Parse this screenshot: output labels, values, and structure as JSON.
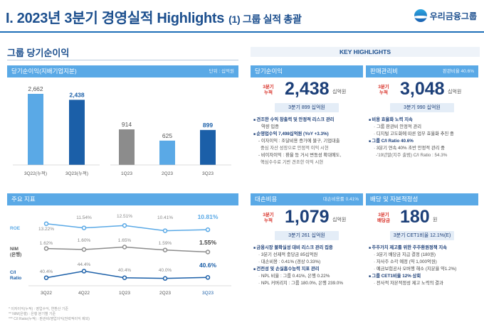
{
  "header": {
    "title": "I. 2023년 3분기 경영실적 Highlights",
    "subtitle": "(1) 그룹 실적 총괄",
    "logo_text": "우리금융그룹"
  },
  "left": {
    "section_title": "그룹 당기순이익",
    "bar_panel": {
      "title": "당기순이익(지배기업지분)",
      "unit": "단위 : 십억원"
    },
    "kpi_panel": {
      "title": "주요 지표"
    }
  },
  "chart_data": [
    {
      "type": "bar",
      "title": "당기순이익(지배기업지분)",
      "unit": "단위 : 십억원",
      "groups": [
        {
          "categories": [
            "3Q22(누적)",
            "3Q23(누적)"
          ],
          "values": [
            2662,
            2438
          ],
          "colors": [
            "#5aa9e6",
            "#1b5fa8"
          ]
        },
        {
          "categories": [
            "1Q23",
            "2Q23",
            "3Q23"
          ],
          "values": [
            914,
            625,
            899
          ],
          "colors": [
            "#8c8c8c",
            "#5aa9e6",
            "#1b5fa8"
          ]
        }
      ],
      "labels": [
        "2,662",
        "2,438",
        "914",
        "625",
        "899"
      ]
    },
    {
      "type": "line",
      "title": "주요 지표",
      "categories": [
        "3Q22",
        "4Q22",
        "1Q23",
        "2Q23",
        "3Q23"
      ],
      "series": [
        {
          "name": "ROE",
          "values": [
            13.22,
            11.54,
            12.51,
            10.41,
            10.81
          ],
          "labels": [
            "13.22%",
            "11.54%",
            "12.51%",
            "10.41%",
            "10.81%"
          ],
          "color": "#5aa9e6"
        },
        {
          "name": "NIM (은행)",
          "values": [
            1.62,
            1.6,
            1.65,
            1.59,
            1.55
          ],
          "labels": [
            "1.62%",
            "1.60%",
            "1.65%",
            "1.59%",
            "1.55%"
          ],
          "color": "#8c8c8c"
        },
        {
          "name": "C/I Ratio",
          "values": [
            40.4,
            44.4,
            40.4,
            40.0,
            40.6
          ],
          "labels": [
            "40.4%",
            "44.4%",
            "40.4%",
            "40.0%",
            "40.6%"
          ],
          "color": "#1b5fa8"
        }
      ]
    }
  ],
  "footnotes": [
    "* 이자이익(누적) : 영업수익, 연환산 기준",
    "** NIM(은행) : 은행 분기별 기준",
    "*** C/I Ratio(누적) : 판관비/영업이익(전략적이익 제외)"
  ],
  "key_highlights": {
    "title": "KEY HIGHLIGHTS",
    "cards": [
      {
        "header": "당기순이익",
        "extra": "",
        "label": "3분기 누적",
        "value": "2,438",
        "unit": "십억원",
        "sub": "3분기 899 십억원",
        "lines": [
          {
            "cls": "b",
            "text": "견조한 수익 창출력 및 안정적 리스크 관리"
          },
          {
            "cls": "t",
            "text": "역량 입증"
          },
          {
            "cls": "b",
            "text": "순영업수익 7,498십억원 (YoY +3.3%)"
          },
          {
            "cls": "s",
            "text": "이자이익 : 조달비용 증가에 불구, 기업대출"
          },
          {
            "cls": "ss",
            "text": "중심 자산 성장으로 안정적 이익 시현"
          },
          {
            "cls": "s",
            "text": "비이자이익 : 환율 등 거시 변동성 확대에도,"
          },
          {
            "cls": "ss",
            "text": "핵심수수료 기반 견조한 이익 시현"
          }
        ]
      },
      {
        "header": "판매관리비",
        "extra": "판관비율 40.6%",
        "label": "3분기 누적",
        "value": "3,048",
        "unit": "십억원",
        "sub": "3분기 990 십억원",
        "lines": [
          {
            "cls": "b",
            "text": "비용 효율화 노력 지속"
          },
          {
            "cls": "tb",
            "text": "그룹 판관비 안정적 관리"
          },
          {
            "cls": "tb",
            "text": "디지털 고도화에 따른 업무 효율화 추진 중"
          },
          {
            "cls": "b",
            "text": "그룹 C/I Ratio 40.6%"
          },
          {
            "cls": "tb",
            "text": "3분기 연속 40% 초반 안정적 관리 중"
          },
          {
            "cls": "ss",
            "text": "-'19년말(지주 출범) C/I Ratio : 54.3%"
          }
        ]
      },
      {
        "header": "대손비용",
        "extra": "대손비용률 0.41%",
        "label": "3분기 누적",
        "value": "1,079",
        "unit": "십억원",
        "sub": "3분기 261 십억원",
        "lines": [
          {
            "cls": "b",
            "text": "금융시장 불확실성 대비 리스크 관리 집중"
          },
          {
            "cls": "tb",
            "text": "3분기 선제적 충당금 85십억원"
          },
          {
            "cls": "tb",
            "text": "대손비용 : 0.41% (경상 0.33%)"
          },
          {
            "cls": "b",
            "text": "건전성 및 손실흡수능력 지표 관리"
          },
          {
            "cls": "tb",
            "text": "NPL 비율 : 그룹 0.41%, 은행 0.22%"
          },
          {
            "cls": "tb",
            "text": "NPL 커버리지 : 그룹 180.0%, 은행 239.0%"
          }
        ]
      },
      {
        "header": "배당 및 자본적정성",
        "extra": "",
        "label": "3분기 배당금",
        "value": "180",
        "unit": "원",
        "sub": "3분기 CET1비율 12.1%(E)",
        "lines": [
          {
            "cls": "b",
            "text": "주주가치 제고를 위한 주주환원정책 지속"
          },
          {
            "cls": "tb",
            "text": "3분기 배당금 지급 결정 (180원)"
          },
          {
            "cls": "tb",
            "text": "자사주 소각 예정 (약 1,000억원)"
          },
          {
            "cls": "tb",
            "text": "예금보험공사 오버행 해소 (지분율 약1.2%)"
          },
          {
            "cls": "b",
            "text": "그룹 CET1비율 12% 상회"
          },
          {
            "cls": "tb",
            "text": "전사적 자본적정성 제고 노력의 결과"
          }
        ]
      }
    ]
  },
  "colors": {
    "brand_dark": "#1c4f8e",
    "accent": "#5aa9e6",
    "highlight_red": "#d9342b"
  }
}
